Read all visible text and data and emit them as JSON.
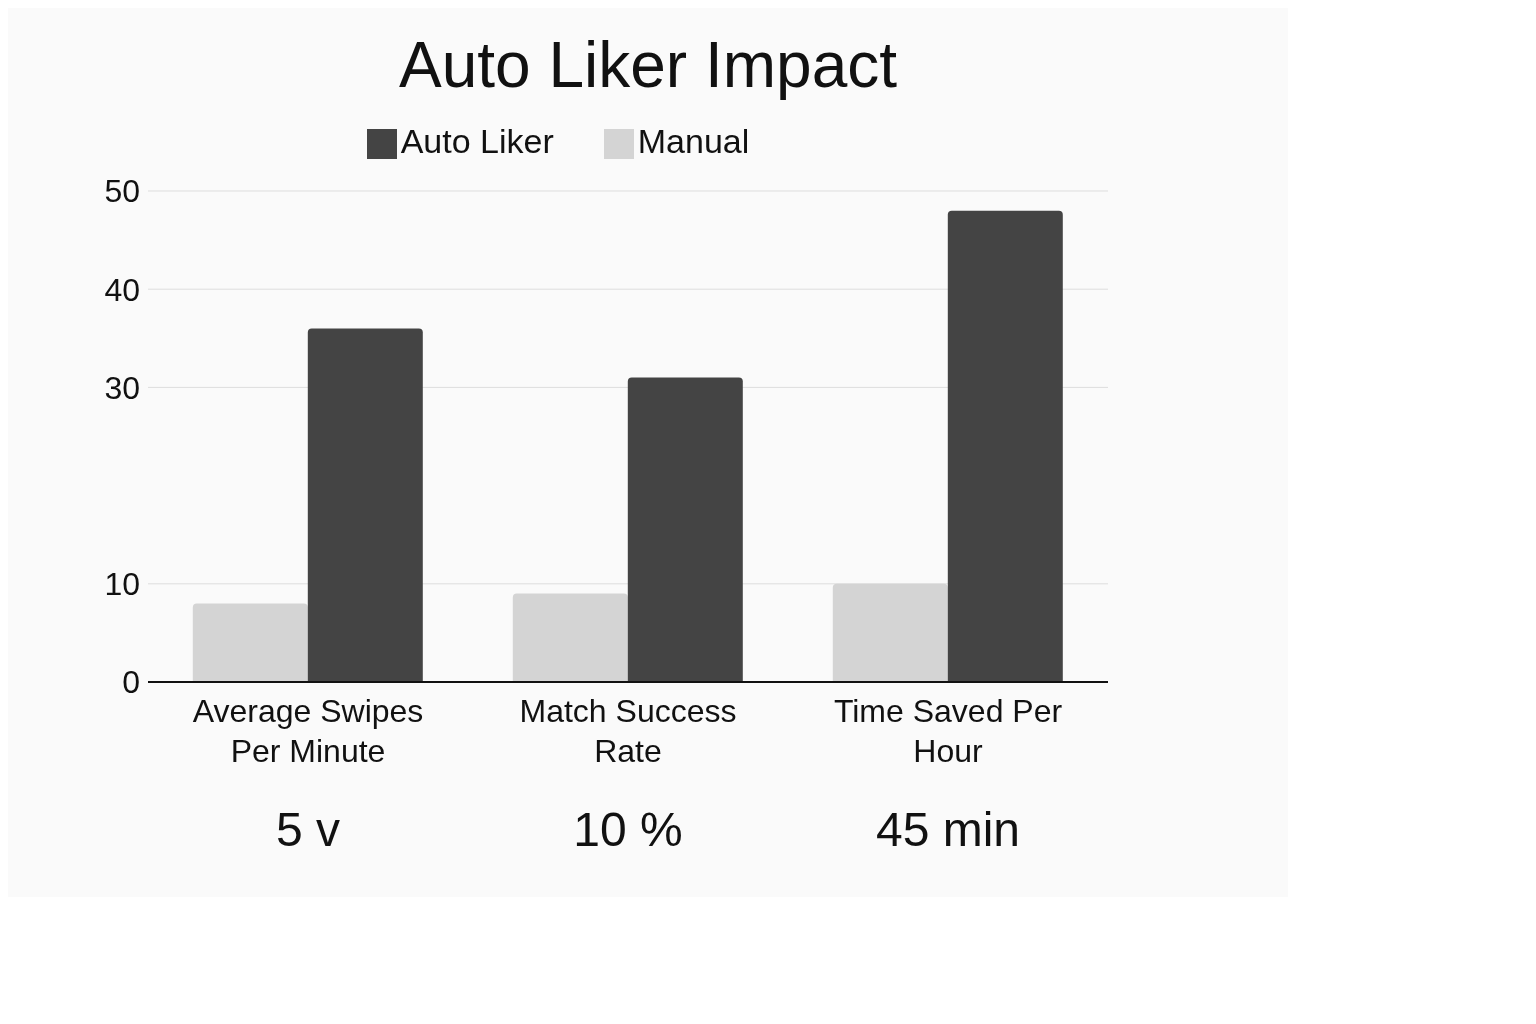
{
  "chart_data": {
    "type": "bar",
    "title": "Auto Liker Impact",
    "categories": [
      "Average Swipes Per Minute",
      "Match Success Rate",
      "Time Saved Per Hour"
    ],
    "series": [
      {
        "name": "Manual",
        "color": "#d4d4d4",
        "values": [
          8,
          9,
          10
        ]
      },
      {
        "name": "Auto Liker",
        "color": "#444444",
        "values": [
          36,
          31,
          48
        ]
      }
    ],
    "ylim": [
      0,
      50
    ],
    "yticks": [
      0,
      10,
      30,
      40,
      50
    ],
    "grid": "y",
    "legend": "top",
    "annotations": [
      "5 v",
      "10 %",
      "45 min"
    ]
  }
}
